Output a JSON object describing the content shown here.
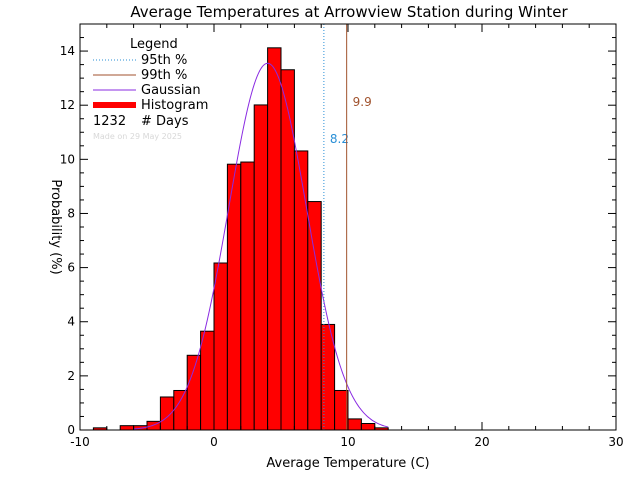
{
  "chart_data": {
    "type": "bar",
    "title": "Average Temperatures at Arrowview Station during Winter",
    "xlabel": "Average Temperature (C)",
    "ylabel": "Probability (%)",
    "xlim": [
      -10,
      30
    ],
    "ylim": [
      0,
      15
    ],
    "x_ticks": [
      "-10",
      "0",
      "10",
      "20",
      "30"
    ],
    "y_ticks": [
      "0",
      "2",
      "4",
      "6",
      "8",
      "10",
      "12",
      "14"
    ],
    "bin_width": 1,
    "bin_starts": [
      -9,
      -8,
      -7,
      -6,
      -5,
      -4,
      -3,
      -2,
      -1,
      0,
      1,
      2,
      3,
      4,
      5,
      6,
      7,
      8,
      9,
      10,
      11,
      12
    ],
    "values": [
      0.08,
      0.0,
      0.16,
      0.16,
      0.32,
      1.22,
      1.46,
      2.76,
      3.65,
      6.17,
      9.82,
      9.9,
      12.01,
      14.12,
      13.31,
      10.31,
      8.44,
      3.9,
      1.46,
      0.41,
      0.24,
      0.08
    ],
    "gaussian": {
      "mean": 4.0,
      "sigma": 2.9,
      "peak": 13.55,
      "range": [
        -6,
        13
      ]
    },
    "percentile_lines": [
      {
        "label": "95th %",
        "value": 8.2,
        "value_label": "8.2",
        "color": "#2a8fd6",
        "style": "dotted"
      },
      {
        "label": "99th %",
        "value": 9.9,
        "value_label": "9.9",
        "color": "#a0522d",
        "style": "solid"
      }
    ],
    "legend": {
      "title": "Legend",
      "items": [
        {
          "label": "95th %",
          "color": "#2a8fd6",
          "style": "dotted"
        },
        {
          "label": "99th %",
          "color": "#a0522d",
          "style": "solid"
        },
        {
          "label": "Gaussian",
          "color": "#8a2be2",
          "style": "solid"
        },
        {
          "label": "Histogram",
          "color": "#ff0000",
          "style": "thick"
        }
      ],
      "count_value": "1232",
      "count_label": "# Days",
      "watermark": "Made on 29 May 2025",
      "placement": "top-left"
    },
    "colors": {
      "histogram": "#ff0000",
      "gaussian": "#8a2be2"
    },
    "grid": false
  }
}
